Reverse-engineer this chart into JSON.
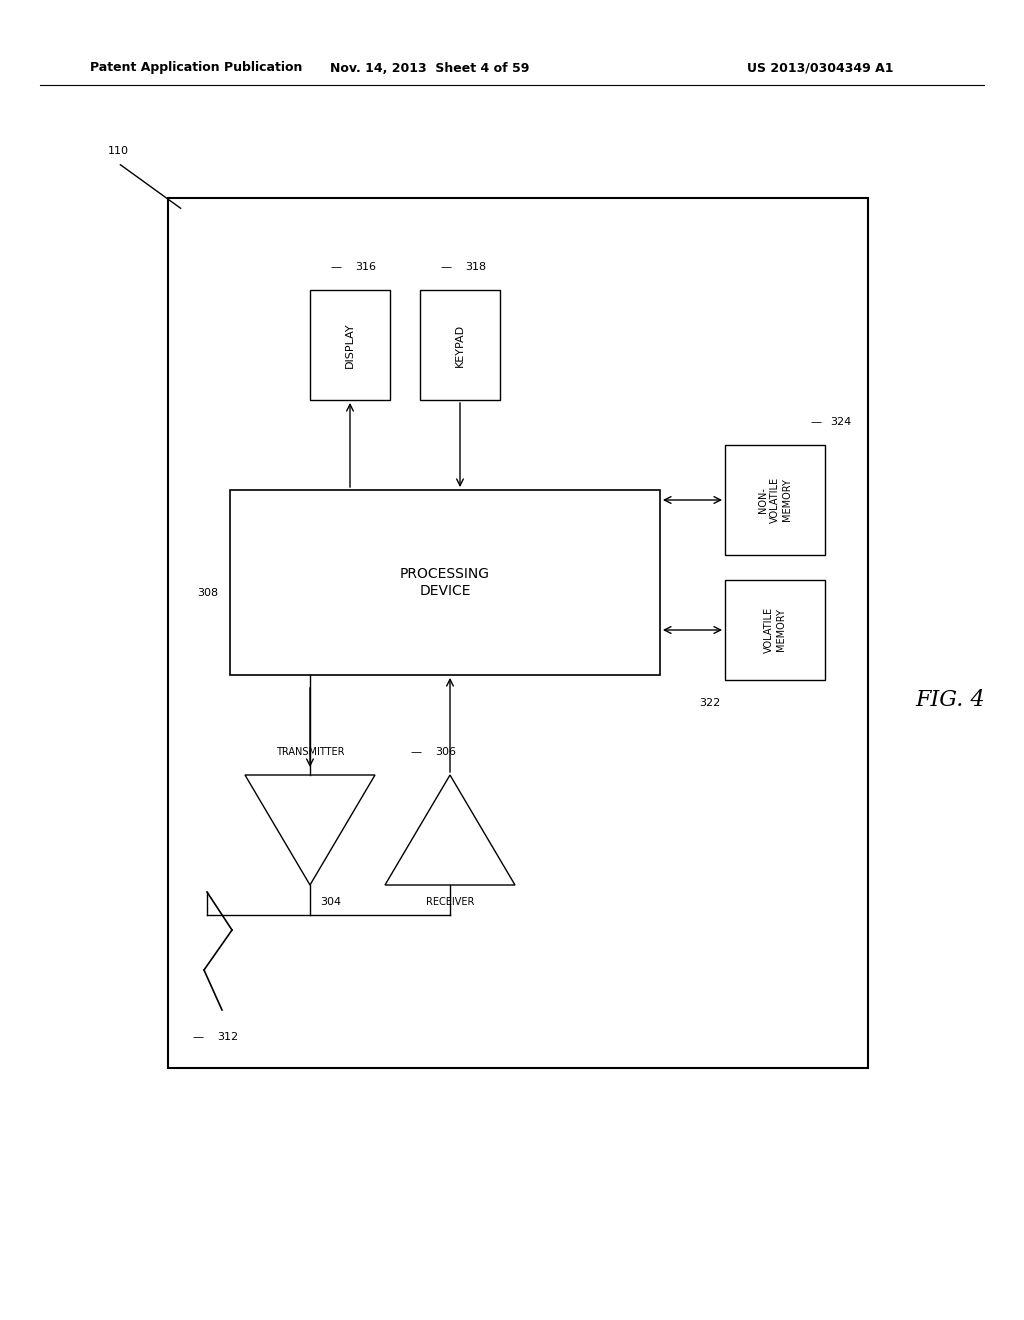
{
  "bg_color": "#ffffff",
  "header_text": "Patent Application Publication",
  "header_date": "Nov. 14, 2013  Sheet 4 of 59",
  "header_patent": "US 2013/0304349 A1",
  "fig_label": "FIG. 4",
  "ref_110": "110",
  "ref_308": "308",
  "ref_312": "312",
  "ref_316": "316",
  "ref_318": "318",
  "ref_304": "304",
  "ref_306": "306",
  "ref_322": "322",
  "ref_324": "324",
  "proc_box_label": "PROCESSING\nDEVICE",
  "display_label": "DISPLAY",
  "keypad_label": "KEYPAD",
  "transmitter_label": "TRANSMITTER",
  "receiver_label": "RECEIVER",
  "nv_mem_label": "NON-\nVOLATILE\nMEMORY",
  "v_mem_label": "VOLATILE\nMEMORY",
  "line_color": "#000000",
  "text_color": "#000000",
  "box_fill": "#ffffff",
  "font_size_label": 9,
  "font_size_ref": 8,
  "font_size_header": 9,
  "font_size_fig": 16
}
